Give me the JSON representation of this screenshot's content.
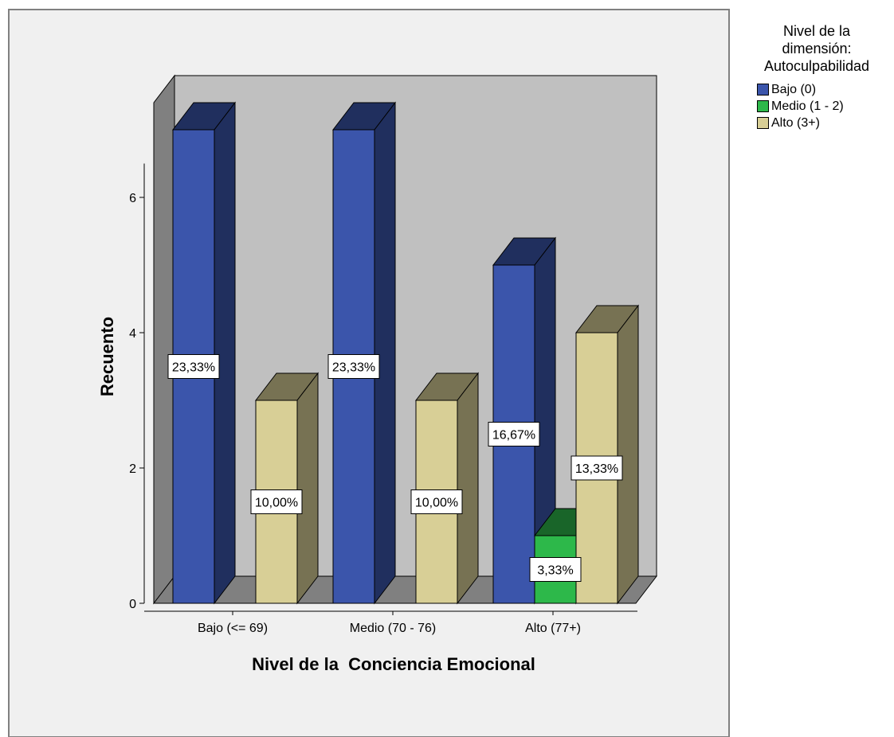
{
  "chart_data": {
    "type": "bar",
    "title": "",
    "xlabel": "Nivel de la  Conciencia Emocional",
    "ylabel": "Recuento",
    "ylim": [
      0,
      7.4
    ],
    "yticks": [
      "0",
      "2",
      "4",
      "6"
    ],
    "categories": [
      "Bajo (<= 69)",
      "Medio (70 - 76)",
      "Alto (77+)"
    ],
    "series": [
      {
        "name": "Bajo (0)",
        "color": "#3b55ab",
        "values": [
          7,
          7,
          5
        ],
        "labels": [
          "23,33%",
          "23,33%",
          "16,67%"
        ]
      },
      {
        "name": "Medio (1 - 2)",
        "color": "#2db84a",
        "values": [
          0,
          0,
          1
        ],
        "labels": [
          "",
          "",
          "3,33%"
        ]
      },
      {
        "name": "Alto (3+)",
        "color": "#d8cf96",
        "values": [
          3,
          3,
          4
        ],
        "labels": [
          "10,00%",
          "10,00%",
          "13,33%"
        ]
      }
    ],
    "legend": {
      "title": "Nivel de la\ndimensión:\nAutoculpabilidad",
      "placement": "right"
    },
    "grid": false
  }
}
